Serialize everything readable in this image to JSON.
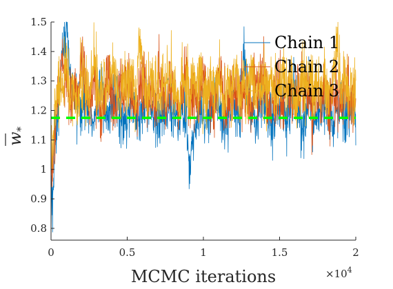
{
  "chart_data": {
    "type": "line",
    "title": "",
    "xlabel": "MCMC iterations",
    "ylabel": "w̄*",
    "ylabel_base": "w",
    "ylabel_sub": "*",
    "x_exponent_base": "×10",
    "x_exponent_power": "4",
    "xlim": [
      0,
      20000
    ],
    "ylim": [
      0.76,
      1.5
    ],
    "x_ticks": [
      0,
      5000,
      10000,
      15000,
      20000
    ],
    "x_tick_labels": [
      "0",
      "0.5",
      "1",
      "1.5",
      "2"
    ],
    "y_ticks": [
      0.8,
      0.9,
      1.0,
      1.1,
      1.2,
      1.3,
      1.4,
      1.5
    ],
    "y_tick_labels": [
      "0.8",
      "0.9",
      "1",
      "1.1",
      "1.2",
      "1.3",
      "1.4",
      "1.5"
    ],
    "legend_position": "top-right",
    "reference_line": {
      "y": 1.175,
      "color": "#00ff00",
      "style": "dashed"
    },
    "series": [
      {
        "name": "Chain 1",
        "color": "#0072bd",
        "start": 0.77,
        "mean": 1.2,
        "spread": 0.065,
        "values": [
          0.77,
          1.05,
          1.22,
          1.38,
          1.5,
          1.3,
          1.25,
          1.22,
          1.19,
          1.26,
          1.21,
          1.15,
          1.24,
          1.28,
          1.2,
          1.17,
          1.22,
          1.25,
          1.19,
          1.13,
          1.2,
          1.26,
          1.18,
          1.16,
          1.21,
          1.24,
          1.22,
          1.18,
          1.15,
          1.2,
          1.23,
          1.22,
          1.19,
          1.16,
          1.21,
          1.17,
          0.99,
          1.1,
          1.19,
          1.23,
          1.2,
          1.16,
          1.22,
          1.25,
          1.2,
          1.13,
          1.19,
          1.23,
          1.2,
          1.17,
          1.41,
          1.24,
          1.2,
          1.16,
          1.22,
          1.25,
          1.19,
          1.14,
          1.2,
          1.23,
          1.21,
          1.18,
          1.22,
          1.26,
          1.2,
          1.15,
          1.19,
          1.23,
          1.2,
          1.17,
          1.21,
          1.24,
          1.19,
          1.15,
          1.2,
          1.23,
          1.2,
          1.17,
          1.21,
          1.19
        ]
      },
      {
        "name": "Chain 2",
        "color": "#d95319",
        "start": 0.95,
        "mean": 1.25,
        "spread": 0.07,
        "values": [
          0.95,
          1.12,
          1.28,
          1.35,
          1.31,
          1.24,
          1.29,
          1.22,
          1.38,
          1.27,
          1.21,
          1.3,
          1.25,
          1.19,
          1.27,
          1.33,
          1.24,
          1.2,
          1.29,
          1.25,
          1.31,
          1.22,
          1.18,
          1.26,
          1.3,
          1.24,
          1.28,
          1.21,
          1.33,
          1.27,
          1.23,
          1.29,
          1.25,
          1.2,
          1.27,
          1.31,
          1.24,
          1.28,
          1.22,
          1.26,
          1.3,
          1.25,
          1.21,
          1.27,
          1.32,
          1.24,
          1.2,
          1.28,
          1.25,
          1.3,
          1.23,
          1.27,
          1.21,
          1.29,
          1.25,
          1.33,
          1.24,
          1.2,
          1.27,
          1.3,
          1.23,
          1.28,
          1.25,
          1.21,
          1.29,
          1.26,
          1.31,
          1.24,
          1.19,
          1.27,
          1.24,
          1.3,
          1.22,
          1.28,
          1.25,
          1.2,
          1.27,
          1.3,
          1.23,
          1.26
        ]
      },
      {
        "name": "Chain 3",
        "color": "#edb120",
        "start": 1.0,
        "mean": 1.27,
        "spread": 0.07,
        "values": [
          1.0,
          1.2,
          1.3,
          1.27,
          1.33,
          1.25,
          1.29,
          1.22,
          1.31,
          1.27,
          1.24,
          1.34,
          1.28,
          1.23,
          1.3,
          1.26,
          1.35,
          1.27,
          1.22,
          1.3,
          1.28,
          1.33,
          1.25,
          1.45,
          1.29,
          1.24,
          1.32,
          1.27,
          1.23,
          1.3,
          1.28,
          1.34,
          1.26,
          1.22,
          1.29,
          1.31,
          1.25,
          1.3,
          1.27,
          1.33,
          1.24,
          1.29,
          1.26,
          1.31,
          1.28,
          1.23,
          1.3,
          1.27,
          1.34,
          1.25,
          1.29,
          1.26,
          1.32,
          1.28,
          1.24,
          1.3,
          1.27,
          1.33,
          1.25,
          1.29,
          1.31,
          1.26,
          1.3,
          1.27,
          1.23,
          1.31,
          1.28,
          1.33,
          1.26,
          1.3,
          1.27,
          1.32,
          1.25,
          1.29,
          1.42,
          1.27,
          1.31,
          1.24,
          1.28,
          1.26
        ]
      }
    ]
  }
}
